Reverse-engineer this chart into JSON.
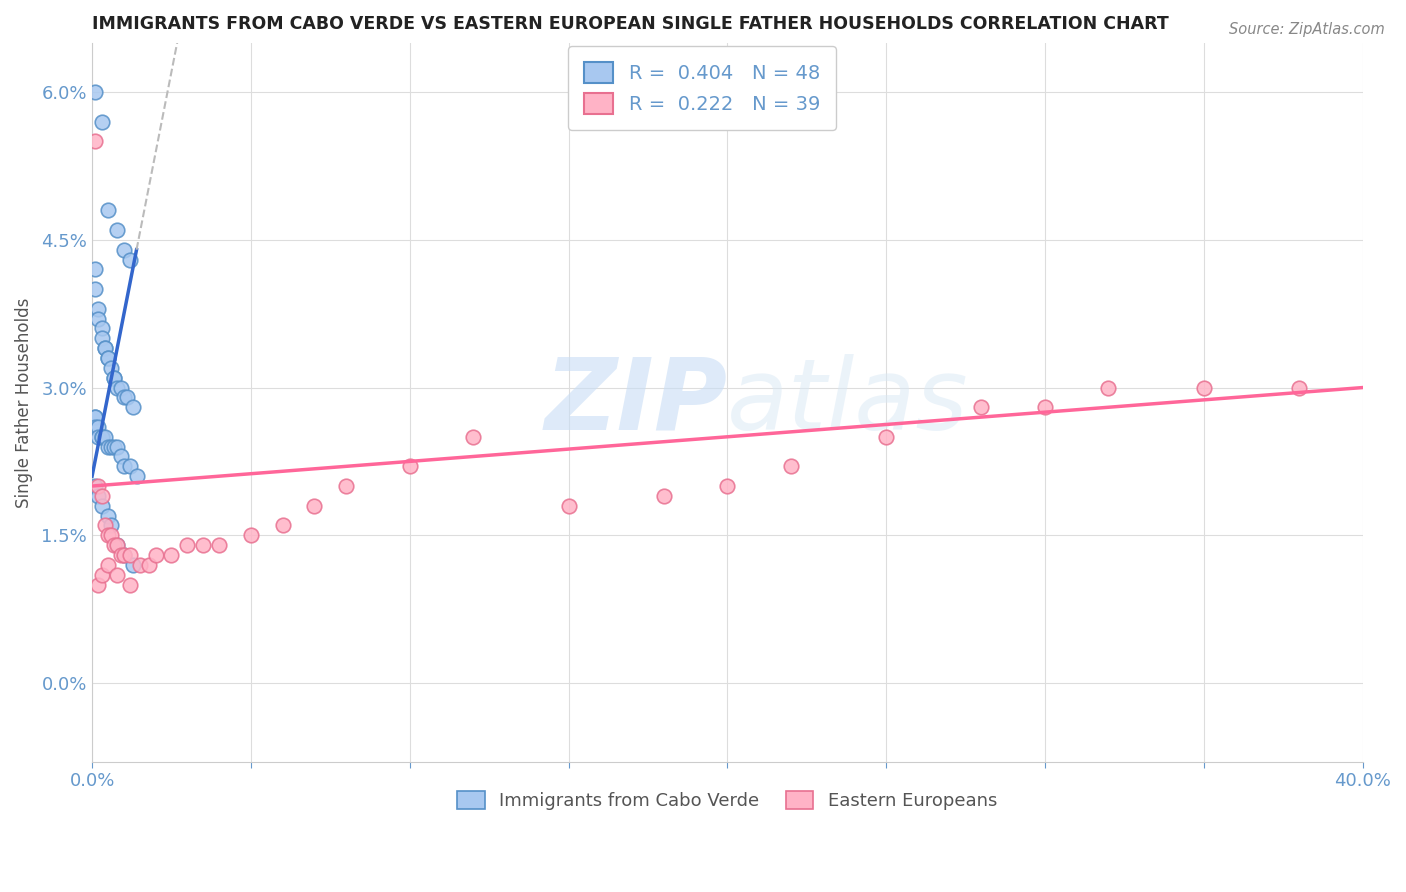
{
  "title": "IMMIGRANTS FROM CABO VERDE VS EASTERN EUROPEAN SINGLE FATHER HOUSEHOLDS CORRELATION CHART",
  "source": "Source: ZipAtlas.com",
  "ylabel": "Single Father Households",
  "legend_label1": "R =  0.404   N = 48",
  "legend_label2": "R =  0.222   N = 39",
  "watermark_zip": "ZIP",
  "watermark_atlas": "atlas",
  "cabo_verde_color": "#a8c8f0",
  "cabo_verde_edge": "#5590c8",
  "eastern_eu_color": "#ffb3c6",
  "eastern_eu_edge": "#e87090",
  "trend_blue_color": "#3366cc",
  "trend_pink_color": "#ff6699",
  "trend_gray_color": "#bbbbbb",
  "background_color": "#ffffff",
  "grid_color": "#dddddd",
  "title_color": "#222222",
  "axis_color": "#6699cc",
  "marker_size": 110,
  "xmax": 0.4,
  "ymax": 0.065,
  "ymin": -0.008,
  "cabo_verde_x": [
    0.001,
    0.003,
    0.005,
    0.008,
    0.01,
    0.012,
    0.001,
    0.001,
    0.002,
    0.002,
    0.003,
    0.003,
    0.004,
    0.004,
    0.005,
    0.005,
    0.006,
    0.007,
    0.007,
    0.008,
    0.009,
    0.01,
    0.011,
    0.013,
    0.001,
    0.001,
    0.001,
    0.002,
    0.002,
    0.003,
    0.003,
    0.004,
    0.005,
    0.006,
    0.007,
    0.008,
    0.009,
    0.01,
    0.012,
    0.014,
    0.001,
    0.002,
    0.003,
    0.005,
    0.006,
    0.008,
    0.01,
    0.013
  ],
  "cabo_verde_y": [
    0.06,
    0.057,
    0.048,
    0.046,
    0.044,
    0.043,
    0.042,
    0.04,
    0.038,
    0.037,
    0.036,
    0.035,
    0.034,
    0.034,
    0.033,
    0.033,
    0.032,
    0.031,
    0.031,
    0.03,
    0.03,
    0.029,
    0.029,
    0.028,
    0.027,
    0.027,
    0.026,
    0.026,
    0.025,
    0.025,
    0.025,
    0.025,
    0.024,
    0.024,
    0.024,
    0.024,
    0.023,
    0.022,
    0.022,
    0.021,
    0.02,
    0.019,
    0.018,
    0.017,
    0.016,
    0.014,
    0.013,
    0.012
  ],
  "eastern_eu_x": [
    0.001,
    0.002,
    0.003,
    0.004,
    0.005,
    0.006,
    0.007,
    0.008,
    0.009,
    0.01,
    0.012,
    0.015,
    0.018,
    0.02,
    0.025,
    0.03,
    0.035,
    0.04,
    0.05,
    0.06,
    0.07,
    0.08,
    0.1,
    0.12,
    0.15,
    0.18,
    0.2,
    0.22,
    0.25,
    0.28,
    0.3,
    0.32,
    0.35,
    0.38,
    0.002,
    0.003,
    0.005,
    0.008,
    0.012
  ],
  "eastern_eu_y": [
    0.055,
    0.02,
    0.019,
    0.016,
    0.015,
    0.015,
    0.014,
    0.014,
    0.013,
    0.013,
    0.013,
    0.012,
    0.012,
    0.013,
    0.013,
    0.014,
    0.014,
    0.014,
    0.015,
    0.016,
    0.018,
    0.02,
    0.022,
    0.025,
    0.018,
    0.019,
    0.02,
    0.022,
    0.025,
    0.028,
    0.028,
    0.03,
    0.03,
    0.03,
    0.01,
    0.011,
    0.012,
    0.011,
    0.01
  ],
  "x_ticks": [
    0.0,
    0.05,
    0.1,
    0.15,
    0.2,
    0.25,
    0.3,
    0.35,
    0.4
  ],
  "y_ticks": [
    0.0,
    0.015,
    0.03,
    0.045,
    0.06
  ]
}
